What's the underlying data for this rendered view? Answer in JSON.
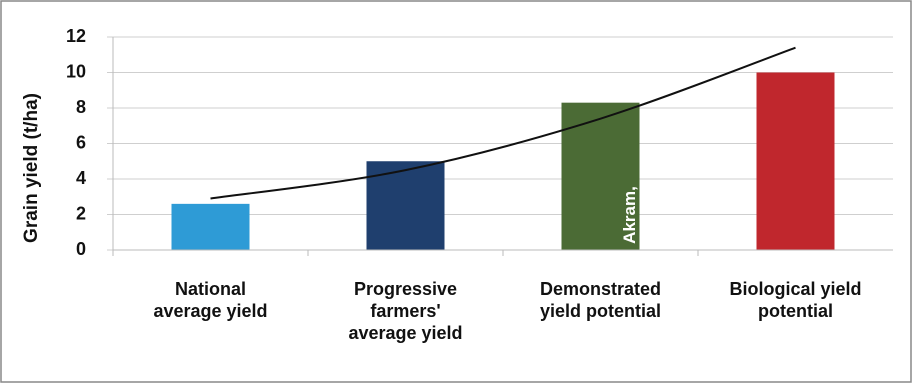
{
  "chart_data": {
    "type": "bar",
    "y_label": "Grain yield (t/ha)",
    "categories": [
      "National\naverage yield",
      "Progressive\nfarmers'\naverage yield",
      "Demonstrated\nyield potential",
      "Biological yield\npotential"
    ],
    "values": [
      2.6,
      5.0,
      8.3,
      10.0
    ],
    "colors": [
      "#2e9bd6",
      "#1f3f6e",
      "#4b6b35",
      "#c0272d"
    ],
    "trendline": {
      "values": [
        2.9,
        4.5,
        7.4,
        11.4
      ],
      "color": "#111111"
    },
    "annotation": "Akram,",
    "ylim": [
      0,
      12
    ],
    "yticks": [
      0,
      2,
      4,
      6,
      8,
      10,
      12
    ],
    "grid": true
  }
}
